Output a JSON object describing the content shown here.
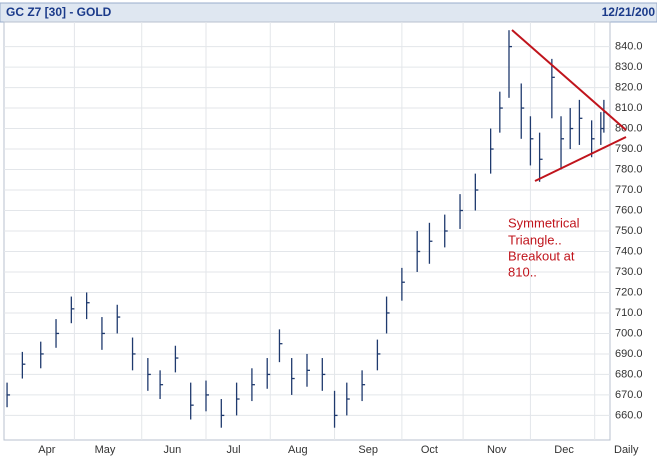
{
  "chart_data": {
    "type": "ohlc",
    "title": "GC Z7 [30] - GOLD",
    "date": "12/21/200",
    "frequency": "Daily",
    "color": "#1f3a6e",
    "grid": true,
    "x": [
      0,
      5,
      11,
      16,
      21,
      26,
      31,
      36,
      41,
      46,
      50,
      55,
      60,
      65,
      70,
      75,
      80,
      85,
      89,
      93,
      98,
      103,
      107,
      111,
      116,
      121,
      124,
      129,
      134,
      138,
      143,
      148,
      153,
      158,
      161,
      164,
      168,
      171,
      174,
      178,
      181,
      184,
      187,
      191,
      194,
      195
    ],
    "high": [
      676,
      691,
      696,
      707,
      718,
      720,
      708,
      714,
      698,
      688,
      682,
      694,
      676,
      677,
      668,
      676,
      683,
      688,
      702,
      688,
      690,
      688,
      672,
      676,
      682,
      697,
      718,
      732,
      750,
      754,
      758,
      768,
      778,
      800,
      818,
      848,
      822,
      806,
      798,
      834,
      806,
      810,
      814,
      804,
      808,
      814
    ],
    "low": [
      664,
      678,
      683,
      693,
      705,
      707,
      692,
      700,
      682,
      672,
      668,
      681,
      658,
      662,
      654,
      660,
      667,
      673,
      686,
      670,
      674,
      672,
      654,
      660,
      667,
      682,
      700,
      716,
      730,
      734,
      742,
      751,
      760,
      778,
      798,
      815,
      795,
      782,
      774,
      805,
      780,
      790,
      792,
      786,
      792,
      798
    ],
    "close": [
      670,
      685,
      690,
      700,
      712,
      715,
      700,
      708,
      690,
      680,
      675,
      688,
      665,
      670,
      660,
      668,
      675,
      680,
      695,
      678,
      682,
      680,
      660,
      668,
      675,
      690,
      710,
      725,
      740,
      745,
      750,
      760,
      770,
      790,
      810,
      840,
      810,
      795,
      785,
      825,
      795,
      800,
      805,
      795,
      800,
      808
    ],
    "xticks": [
      {
        "value": 13,
        "label": "Apr"
      },
      {
        "value": 32,
        "label": "May"
      },
      {
        "value": 54,
        "label": "Jun"
      },
      {
        "value": 74,
        "label": "Jul"
      },
      {
        "value": 95,
        "label": "Aug"
      },
      {
        "value": 118,
        "label": "Sep"
      },
      {
        "value": 138,
        "label": "Oct"
      },
      {
        "value": 160,
        "label": "Nov"
      },
      {
        "value": 182,
        "label": "Dec"
      }
    ],
    "xgrid": [
      22,
      44,
      65,
      86,
      107,
      129,
      149,
      171,
      192
    ],
    "xlim": [
      -1,
      197
    ],
    "ylim": [
      648,
      852
    ],
    "yticks": [
      {
        "value": 660,
        "label": "660.0"
      },
      {
        "value": 670,
        "label": "670.0"
      },
      {
        "value": 680,
        "label": "680.0"
      },
      {
        "value": 690,
        "label": "690.0"
      },
      {
        "value": 700,
        "label": "700.0"
      },
      {
        "value": 710,
        "label": "710.0"
      },
      {
        "value": 720,
        "label": "720.0"
      },
      {
        "value": 730,
        "label": "730.0"
      },
      {
        "value": 740,
        "label": "740.0"
      },
      {
        "value": 750,
        "label": "750.0"
      },
      {
        "value": 760,
        "label": "760.0"
      },
      {
        "value": 770,
        "label": "770.0"
      },
      {
        "value": 780,
        "label": "780.0"
      },
      {
        "value": 790,
        "label": "790.0"
      },
      {
        "value": 800,
        "label": "800.0"
      },
      {
        "value": 810,
        "label": "810.0"
      },
      {
        "value": 820,
        "label": "820.0"
      },
      {
        "value": 830,
        "label": "830.0"
      },
      {
        "value": 840,
        "label": "840.0"
      }
    ],
    "annotation": [
      "Symmetrical",
      "Triangle..",
      "Breakout at",
      "810.."
    ]
  }
}
